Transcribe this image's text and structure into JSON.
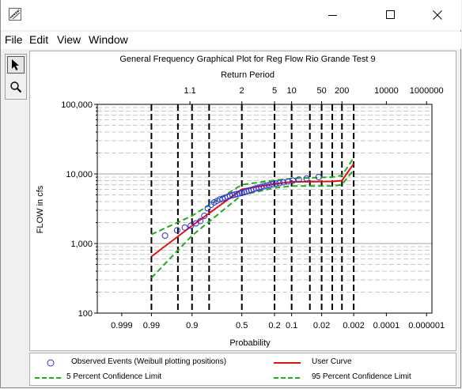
{
  "menu": {
    "file": "File",
    "edit": "Edit",
    "view": "View",
    "window": "Window"
  },
  "tools": [
    {
      "icon": "arrow-pointer-icon",
      "selected": true
    },
    {
      "icon": "magnifier-icon",
      "selected": false
    }
  ],
  "colors": {
    "observed": "#3333cc",
    "user_curve": "#dd1111",
    "confidence": "#22aa22",
    "probability_lines": "#000000",
    "grid": "#c8c8c8"
  },
  "chart_data": {
    "type": "scatter",
    "title": "General Frequency Graphical Plot for Reg Flow Rio Grande Test 9",
    "top_axis_label": "Return Period",
    "xlabel": "Probability",
    "ylabel": "FLOW in cfs",
    "y_scale": "log",
    "ylim": [
      100,
      100000
    ],
    "y_ticks": [
      {
        "value": 100,
        "label": "100"
      },
      {
        "value": 1000,
        "label": "1,000"
      },
      {
        "value": 10000,
        "label": "10,000"
      },
      {
        "value": 100000,
        "label": "100,000"
      }
    ],
    "x_scale": "normal-probability (exceedance, decreasing left to right)",
    "xlim": [
      0.9999,
      5e-07
    ],
    "x_ticks": [
      {
        "value": 0.999,
        "label": "0.999"
      },
      {
        "value": 0.99,
        "label": "0.99"
      },
      {
        "value": 0.9,
        "label": "0.9"
      },
      {
        "value": 0.5,
        "label": "0.5"
      },
      {
        "value": 0.2,
        "label": "0.2"
      },
      {
        "value": 0.1,
        "label": "0.1"
      },
      {
        "value": 0.02,
        "label": "0.02"
      },
      {
        "value": 0.002,
        "label": "0.002"
      },
      {
        "value": 0.0001,
        "label": "0.0001"
      },
      {
        "value": 1e-06,
        "label": "0.000001"
      }
    ],
    "return_period_ticks": [
      {
        "value": 1.1,
        "label": "1.1"
      },
      {
        "value": 2,
        "label": "2"
      },
      {
        "value": 5,
        "label": "5"
      },
      {
        "value": 10,
        "label": "10"
      },
      {
        "value": 50,
        "label": "50"
      },
      {
        "value": 200,
        "label": "200"
      },
      {
        "value": 10000,
        "label": "10000"
      },
      {
        "value": 1000000,
        "label": "1000000"
      }
    ],
    "vertical_reference_lines": [
      0.99,
      0.95,
      0.9,
      0.8,
      0.5,
      0.2,
      0.1,
      0.04,
      0.02,
      0.01,
      0.005,
      0.002
    ],
    "series": [
      {
        "name": "Observed Events (Weibull plotting positions)",
        "kind": "points",
        "x": [
          0.976,
          0.952,
          0.929,
          0.905,
          0.881,
          0.857,
          0.833,
          0.81,
          0.786,
          0.762,
          0.738,
          0.714,
          0.69,
          0.667,
          0.643,
          0.619,
          0.595,
          0.571,
          0.548,
          0.524,
          0.5,
          0.476,
          0.452,
          0.429,
          0.405,
          0.381,
          0.357,
          0.333,
          0.31,
          0.286,
          0.262,
          0.238,
          0.214,
          0.19,
          0.167,
          0.143,
          0.119,
          0.095,
          0.071,
          0.048,
          0.024
        ],
        "y": [
          1300,
          1550,
          1700,
          1800,
          1950,
          2100,
          2500,
          3200,
          3600,
          3900,
          4100,
          4300,
          4400,
          4550,
          4700,
          4850,
          4950,
          5050,
          5150,
          5250,
          5350,
          5450,
          5600,
          5750,
          5900,
          6050,
          6200,
          6350,
          6500,
          6650,
          6800,
          6950,
          7100,
          7250,
          7400,
          7600,
          7800,
          8000,
          8300,
          8600,
          9000
        ]
      },
      {
        "name": "User Curve",
        "kind": "line",
        "x": [
          0.99,
          0.9,
          0.5,
          0.2,
          0.1,
          0.01,
          0.005,
          0.002
        ],
        "y": [
          650,
          1800,
          6000,
          7200,
          7700,
          7800,
          8000,
          14000
        ]
      },
      {
        "name": "5 Percent Confidence Limit",
        "kind": "dashed-line",
        "x": [
          0.99,
          0.9,
          0.5,
          0.2,
          0.1,
          0.01,
          0.005,
          0.002
        ],
        "y": [
          320,
          1300,
          5000,
          6300,
          6700,
          6700,
          7000,
          11500
        ]
      },
      {
        "name": "95 Percent Confidence Limit",
        "kind": "dashed-line",
        "x": [
          0.99,
          0.9,
          0.5,
          0.2,
          0.1,
          0.01,
          0.005,
          0.002
        ],
        "y": [
          1350,
          2500,
          7000,
          8100,
          8600,
          9000,
          9500,
          17000
        ]
      }
    ],
    "legend_position": "below plot"
  }
}
